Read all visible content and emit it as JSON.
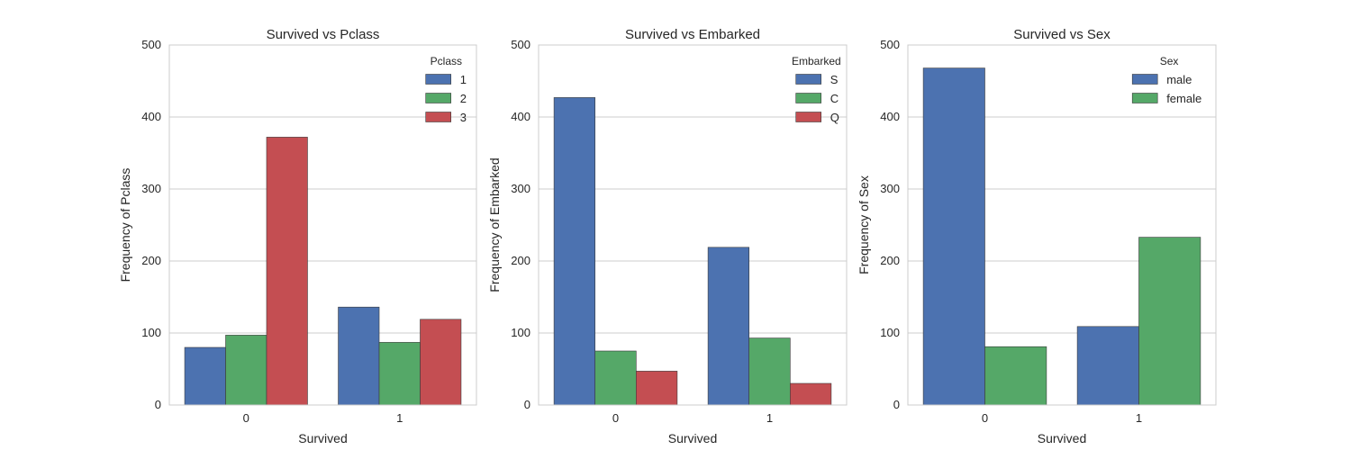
{
  "chart_data": [
    {
      "type": "bar",
      "title": "Survived vs Pclass",
      "xlabel": "Survived",
      "ylabel": "Frequency of Pclass",
      "categories": [
        "0",
        "1"
      ],
      "ylim": [
        0,
        500
      ],
      "yticks": [
        "0",
        "100",
        "200",
        "300",
        "400",
        "500"
      ],
      "grid": true,
      "legend": {
        "title": "Pclass",
        "position": "top-right"
      },
      "series": [
        {
          "name": "1",
          "color": "#4c72b0",
          "values": [
            80,
            136
          ]
        },
        {
          "name": "2",
          "color": "#55a868",
          "values": [
            97,
            87
          ]
        },
        {
          "name": "3",
          "color": "#c44e52",
          "values": [
            372,
            119
          ]
        }
      ]
    },
    {
      "type": "bar",
      "title": "Survived vs Embarked",
      "xlabel": "Survived",
      "ylabel": "Frequency of Embarked",
      "categories": [
        "0",
        "1"
      ],
      "ylim": [
        0,
        500
      ],
      "yticks": [
        "0",
        "100",
        "200",
        "300",
        "400",
        "500"
      ],
      "grid": true,
      "legend": {
        "title": "Embarked",
        "position": "top-right"
      },
      "series": [
        {
          "name": "S",
          "color": "#4c72b0",
          "values": [
            427,
            219
          ]
        },
        {
          "name": "C",
          "color": "#55a868",
          "values": [
            75,
            93
          ]
        },
        {
          "name": "Q",
          "color": "#c44e52",
          "values": [
            47,
            30
          ]
        }
      ]
    },
    {
      "type": "bar",
      "title": "Survived vs Sex",
      "xlabel": "Survived",
      "ylabel": "Frequency of Sex",
      "categories": [
        "0",
        "1"
      ],
      "ylim": [
        0,
        500
      ],
      "yticks": [
        "0",
        "100",
        "200",
        "300",
        "400",
        "500"
      ],
      "grid": true,
      "legend": {
        "title": "Sex",
        "position": "top-right"
      },
      "series": [
        {
          "name": "male",
          "color": "#4c72b0",
          "values": [
            468,
            109
          ]
        },
        {
          "name": "female",
          "color": "#55a868",
          "values": [
            81,
            233
          ]
        }
      ]
    }
  ]
}
